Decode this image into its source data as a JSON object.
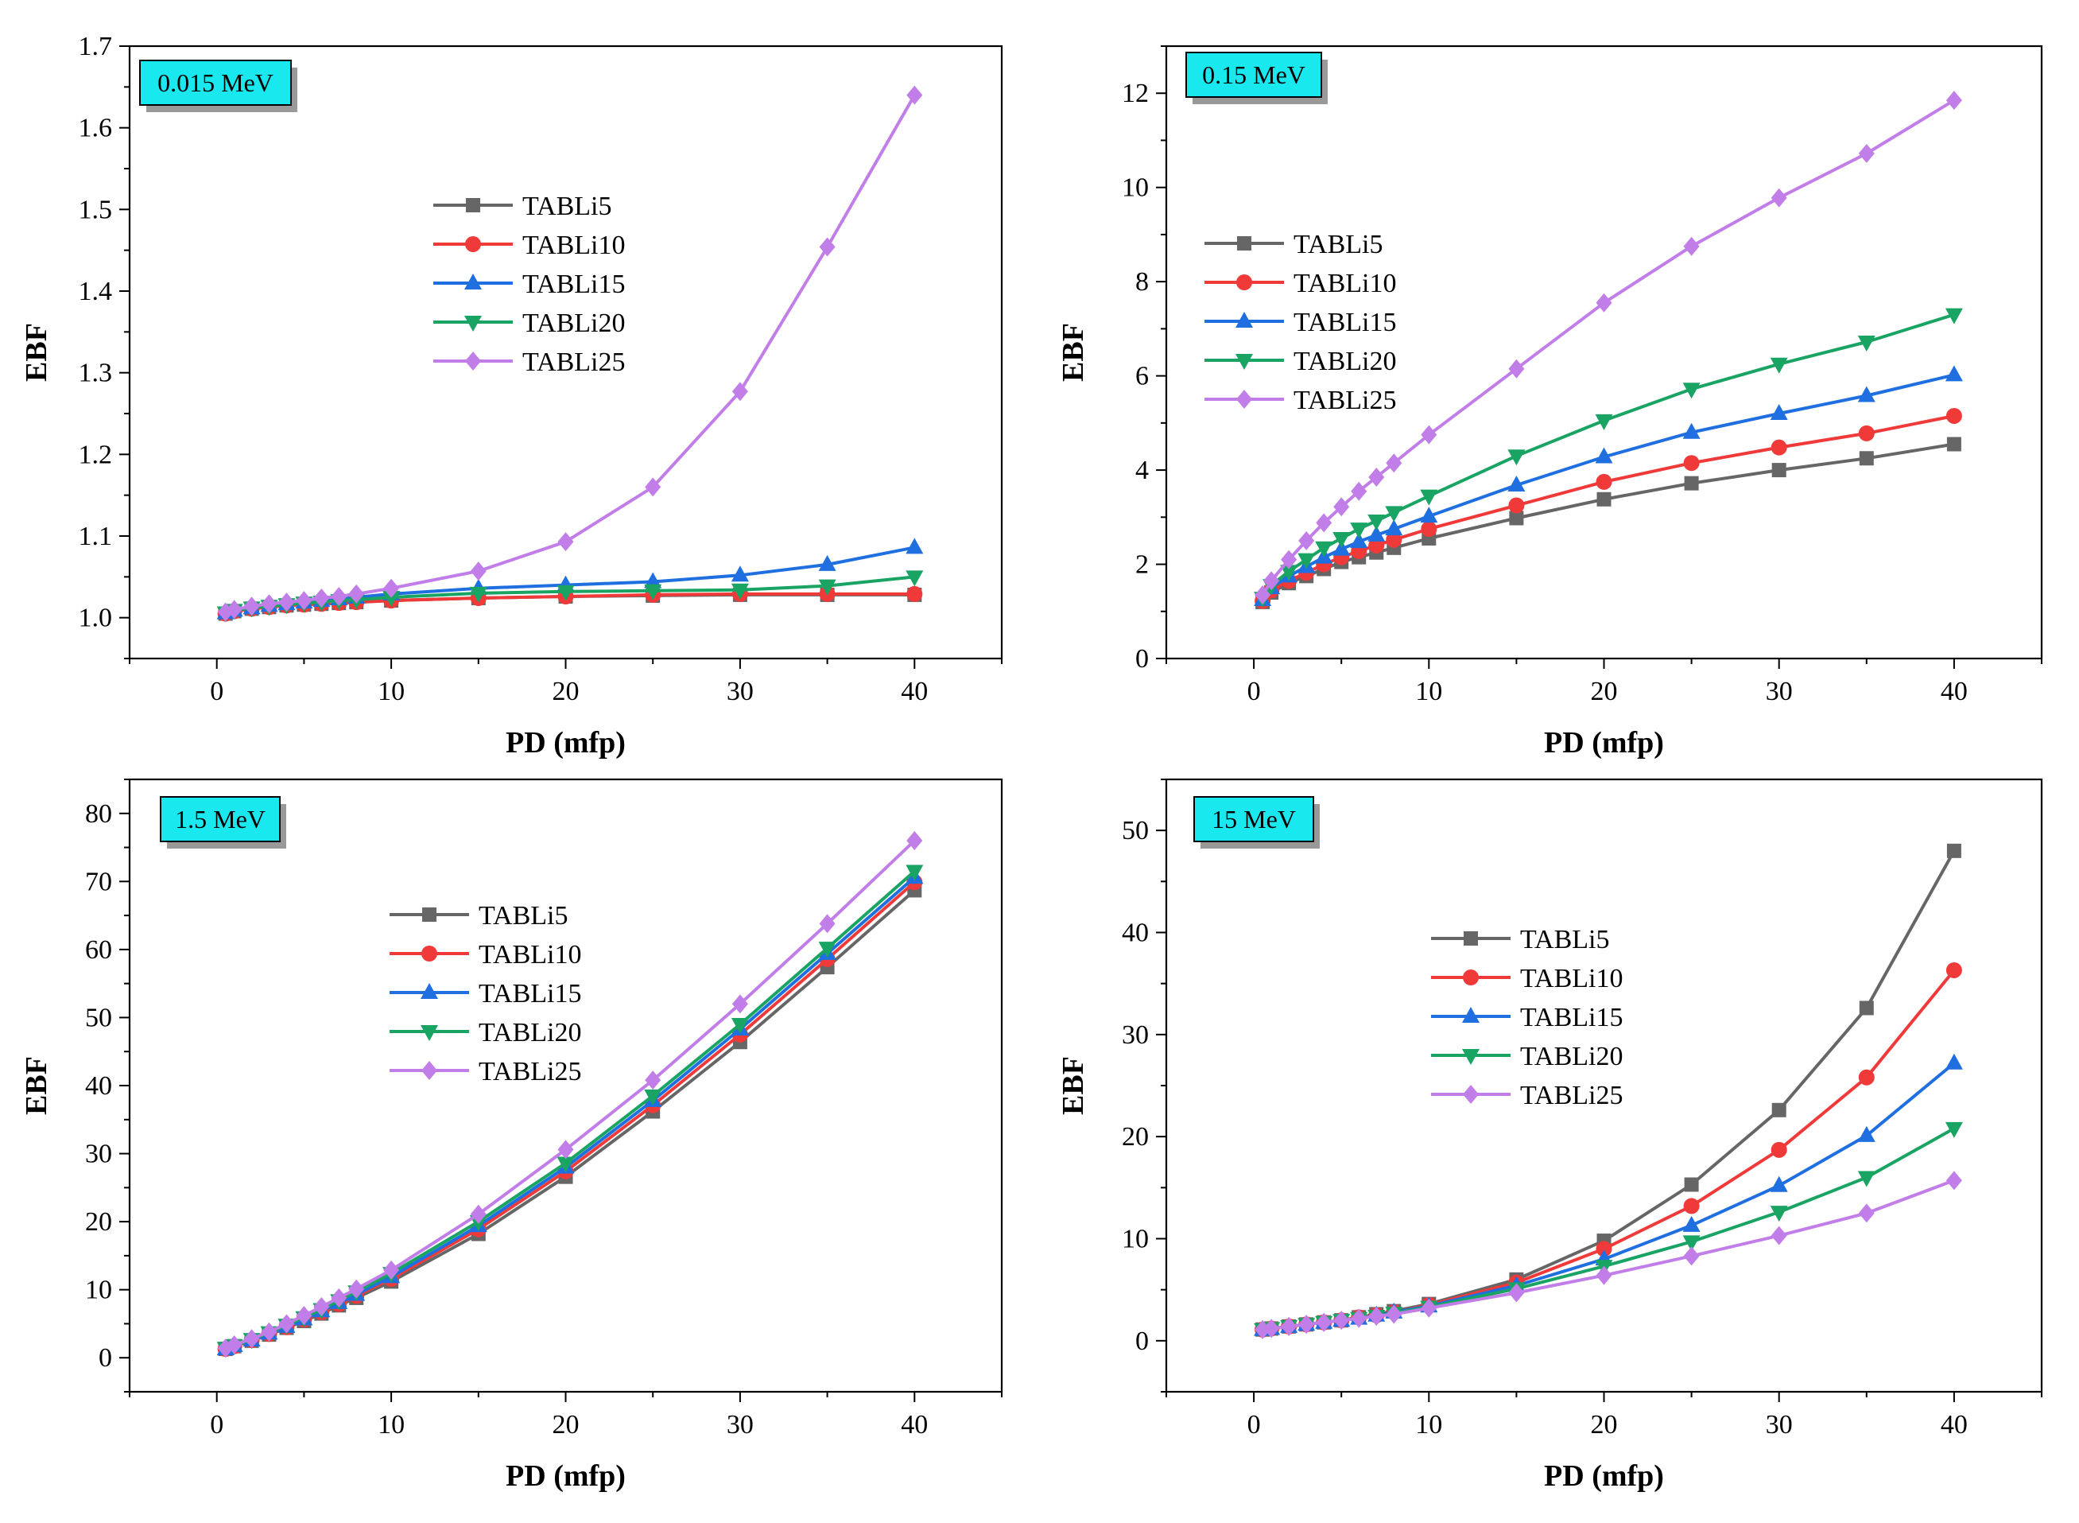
{
  "colors": {
    "TABLi5": "#666666",
    "TABLi10": "#f03a3a",
    "TABLi15": "#1f6fe0",
    "TABLi20": "#19a463",
    "TABLi25": "#c27ee8",
    "energy_box": "#19e9ef"
  },
  "markers": {
    "TABLi5": "square",
    "TABLi10": "circle",
    "TABLi15": "triangle-up",
    "TABLi20": "triangle-down",
    "TABLi25": "diamond"
  },
  "chart_data": [
    {
      "type": "line",
      "energy_label": "0.015 MeV",
      "title": "",
      "xlabel": "PD (mfp)",
      "ylabel": "EBF",
      "xlim": [
        -5,
        45
      ],
      "ylim": [
        0.95,
        1.7
      ],
      "xticks": [
        0,
        10,
        20,
        30,
        40
      ],
      "yticks": [
        1.0,
        1.1,
        1.2,
        1.3,
        1.4,
        1.5,
        1.6,
        1.7
      ],
      "ytick_labels": [
        "1.0",
        "1.1",
        "1.2",
        "1.3",
        "1.4",
        "1.5",
        "1.6",
        "1.7"
      ],
      "grid": false,
      "legend_position": "center",
      "x": [
        0.5,
        1,
        2,
        3,
        4,
        5,
        6,
        7,
        8,
        10,
        15,
        20,
        25,
        30,
        35,
        40
      ],
      "series": [
        {
          "name": "TABLi5",
          "values": [
            1.005,
            1.008,
            1.011,
            1.013,
            1.015,
            1.016,
            1.017,
            1.018,
            1.019,
            1.021,
            1.024,
            1.026,
            1.027,
            1.028,
            1.028,
            1.028
          ]
        },
        {
          "name": "TABLi10",
          "values": [
            1.005,
            1.008,
            1.011,
            1.013,
            1.015,
            1.016,
            1.017,
            1.018,
            1.019,
            1.021,
            1.024,
            1.026,
            1.028,
            1.029,
            1.029,
            1.029
          ]
        },
        {
          "name": "TABLi15",
          "values": [
            1.006,
            1.009,
            1.012,
            1.015,
            1.017,
            1.019,
            1.021,
            1.023,
            1.025,
            1.029,
            1.036,
            1.04,
            1.044,
            1.052,
            1.065,
            1.086
          ]
        },
        {
          "name": "TABLi20",
          "values": [
            1.006,
            1.009,
            1.012,
            1.014,
            1.016,
            1.018,
            1.019,
            1.021,
            1.022,
            1.025,
            1.03,
            1.032,
            1.033,
            1.034,
            1.039,
            1.05
          ]
        },
        {
          "name": "TABLi25",
          "values": [
            1.007,
            1.01,
            1.014,
            1.017,
            1.019,
            1.021,
            1.024,
            1.026,
            1.029,
            1.036,
            1.057,
            1.093,
            1.16,
            1.277,
            1.454,
            1.64
          ]
        }
      ]
    },
    {
      "type": "line",
      "energy_label": "0.15 MeV",
      "title": "",
      "xlabel": "PD (mfp)",
      "ylabel": "EBF",
      "xlim": [
        -5,
        45
      ],
      "ylim": [
        0,
        13
      ],
      "xticks": [
        0,
        10,
        20,
        30,
        40
      ],
      "yticks": [
        0,
        2,
        4,
        6,
        8,
        10,
        12
      ],
      "ytick_labels": [
        "0",
        "2",
        "4",
        "6",
        "8",
        "10",
        "12"
      ],
      "grid": false,
      "legend_position": "center-left",
      "x": [
        0.5,
        1,
        2,
        3,
        4,
        5,
        6,
        7,
        8,
        10,
        15,
        20,
        25,
        30,
        35,
        40
      ],
      "series": [
        {
          "name": "TABLi5",
          "values": [
            1.2,
            1.4,
            1.6,
            1.75,
            1.9,
            2.05,
            2.15,
            2.25,
            2.35,
            2.55,
            2.98,
            3.38,
            3.72,
            4.0,
            4.25,
            4.55
          ]
        },
        {
          "name": "TABLi10",
          "values": [
            1.22,
            1.45,
            1.65,
            1.82,
            2.0,
            2.15,
            2.28,
            2.4,
            2.52,
            2.75,
            3.25,
            3.75,
            4.15,
            4.48,
            4.78,
            5.15
          ]
        },
        {
          "name": "TABLi15",
          "values": [
            1.25,
            1.5,
            1.75,
            1.95,
            2.15,
            2.32,
            2.48,
            2.62,
            2.75,
            3.02,
            3.68,
            4.28,
            4.8,
            5.2,
            5.58,
            6.02
          ]
        },
        {
          "name": "TABLi20",
          "values": [
            1.28,
            1.55,
            1.85,
            2.1,
            2.35,
            2.55,
            2.75,
            2.92,
            3.1,
            3.45,
            4.3,
            5.05,
            5.72,
            6.25,
            6.72,
            7.3
          ]
        },
        {
          "name": "TABLi25",
          "values": [
            1.35,
            1.65,
            2.1,
            2.5,
            2.88,
            3.22,
            3.55,
            3.85,
            4.15,
            4.75,
            6.15,
            7.55,
            8.75,
            9.78,
            10.72,
            11.85
          ]
        }
      ]
    },
    {
      "type": "line",
      "energy_label": "1.5 MeV",
      "title": "",
      "xlabel": "PD (mfp)",
      "ylabel": "EBF",
      "xlim": [
        -5,
        45
      ],
      "ylim": [
        -5,
        85
      ],
      "xticks": [
        0,
        10,
        20,
        30,
        40
      ],
      "yticks": [
        0,
        10,
        20,
        30,
        40,
        50,
        60,
        70,
        80
      ],
      "ytick_labels": [
        "0",
        "10",
        "20",
        "30",
        "40",
        "50",
        "60",
        "70",
        "80"
      ],
      "grid": false,
      "legend_position": "center",
      "x": [
        0.5,
        1,
        2,
        3,
        4,
        5,
        6,
        7,
        8,
        10,
        15,
        20,
        25,
        30,
        35,
        40
      ],
      "series": [
        {
          "name": "TABLi5",
          "values": [
            1.3,
            1.7,
            2.5,
            3.4,
            4.4,
            5.4,
            6.5,
            7.7,
            8.8,
            11.2,
            18.2,
            26.6,
            36.2,
            46.4,
            57.4,
            68.7
          ]
        },
        {
          "name": "TABLi10",
          "values": [
            1.3,
            1.7,
            2.6,
            3.5,
            4.5,
            5.6,
            6.7,
            7.9,
            9.1,
            11.6,
            18.9,
            27.4,
            37.1,
            47.5,
            58.6,
            69.9
          ]
        },
        {
          "name": "TABLi15",
          "values": [
            1.3,
            1.8,
            2.6,
            3.6,
            4.6,
            5.7,
            6.9,
            8.1,
            9.3,
            11.9,
            19.4,
            28.0,
            37.8,
            48.3,
            59.4,
            70.6
          ]
        },
        {
          "name": "TABLi20",
          "values": [
            1.4,
            1.8,
            2.7,
            3.7,
            4.8,
            5.9,
            7.1,
            8.4,
            9.7,
            12.4,
            20.0,
            28.6,
            38.5,
            49.0,
            60.2,
            71.5
          ]
        },
        {
          "name": "TABLi25",
          "values": [
            1.4,
            1.9,
            2.8,
            3.8,
            5.0,
            6.2,
            7.5,
            8.8,
            10.1,
            12.9,
            21.1,
            30.6,
            40.8,
            52.0,
            63.8,
            76.0
          ]
        }
      ]
    },
    {
      "type": "line",
      "energy_label": "15 MeV",
      "title": "",
      "xlabel": "PD (mfp)",
      "ylabel": "EBF",
      "xlim": [
        -5,
        45
      ],
      "ylim": [
        -5,
        55
      ],
      "xticks": [
        0,
        10,
        20,
        30,
        40
      ],
      "yticks": [
        0,
        10,
        20,
        30,
        40,
        50
      ],
      "ytick_labels": [
        "0",
        "10",
        "20",
        "30",
        "40",
        "50"
      ],
      "grid": false,
      "legend_position": "center",
      "x": [
        0.5,
        1,
        2,
        3,
        4,
        5,
        6,
        7,
        8,
        10,
        15,
        20,
        25,
        30,
        35,
        40
      ],
      "series": [
        {
          "name": "TABLi5",
          "values": [
            1.1,
            1.2,
            1.4,
            1.6,
            1.8,
            2.0,
            2.3,
            2.6,
            2.9,
            3.6,
            6.0,
            9.8,
            15.3,
            22.6,
            32.6,
            48.0
          ]
        },
        {
          "name": "TABLi10",
          "values": [
            1.1,
            1.2,
            1.4,
            1.6,
            1.8,
            2.0,
            2.3,
            2.5,
            2.8,
            3.5,
            5.7,
            9.0,
            13.2,
            18.7,
            25.8,
            36.3
          ]
        },
        {
          "name": "TABLi15",
          "values": [
            1.1,
            1.2,
            1.4,
            1.6,
            1.8,
            2.0,
            2.2,
            2.5,
            2.8,
            3.4,
            5.4,
            8.0,
            11.3,
            15.2,
            20.1,
            27.2
          ]
        },
        {
          "name": "TABLi20",
          "values": [
            1.1,
            1.2,
            1.4,
            1.6,
            1.8,
            2.0,
            2.2,
            2.4,
            2.7,
            3.3,
            5.1,
            7.3,
            9.7,
            12.6,
            16.0,
            20.8
          ]
        },
        {
          "name": "TABLi25",
          "values": [
            1.1,
            1.2,
            1.4,
            1.6,
            1.8,
            2.0,
            2.2,
            2.4,
            2.6,
            3.2,
            4.7,
            6.4,
            8.3,
            10.3,
            12.5,
            15.7
          ]
        }
      ]
    }
  ]
}
